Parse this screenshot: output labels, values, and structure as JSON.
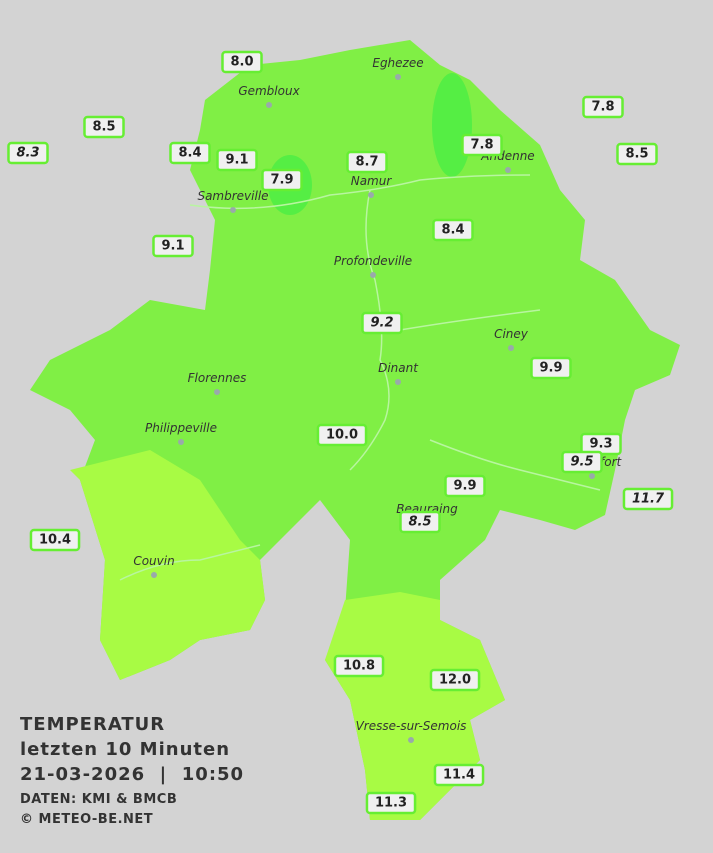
{
  "legend": {
    "title": "TEMPERATUR",
    "period": "letzten 10 Minuten",
    "timestamp": "21-03-2026  |  10:50",
    "source": "DATEN: KMI & BMCB",
    "copyright": "© METEO-BE.NET"
  },
  "towns": [
    {
      "name": "Eghezee"
    },
    {
      "name": "Gembloux"
    },
    {
      "name": "Andenne"
    },
    {
      "name": "Namur"
    },
    {
      "name": "Sambreville"
    },
    {
      "name": "Profondeville"
    },
    {
      "name": "Ciney"
    },
    {
      "name": "Dinant"
    },
    {
      "name": "Florennes"
    },
    {
      "name": "Philippeville"
    },
    {
      "name": "Rochefort"
    },
    {
      "name": "Beauraing"
    },
    {
      "name": "Couvin"
    },
    {
      "name": "Vresse-sur-Semois"
    }
  ],
  "stations": [
    {
      "value": "8.0"
    },
    {
      "value": "8.5"
    },
    {
      "value": "8.3"
    },
    {
      "value": "8.4"
    },
    {
      "value": "9.1"
    },
    {
      "value": "7.9"
    },
    {
      "value": "8.7"
    },
    {
      "value": "7.8"
    },
    {
      "value": "7.8"
    },
    {
      "value": "8.5"
    },
    {
      "value": "9.1"
    },
    {
      "value": "8.4"
    },
    {
      "value": "9.2"
    },
    {
      "value": "9.9"
    },
    {
      "value": "10.0"
    },
    {
      "value": "9.3"
    },
    {
      "value": "9.5"
    },
    {
      "value": "9.9"
    },
    {
      "value": "11.7"
    },
    {
      "value": "8.5"
    },
    {
      "value": "10.4"
    },
    {
      "value": "10.8"
    },
    {
      "value": "12.0"
    },
    {
      "value": "11.4"
    },
    {
      "value": "11.3"
    }
  ]
}
